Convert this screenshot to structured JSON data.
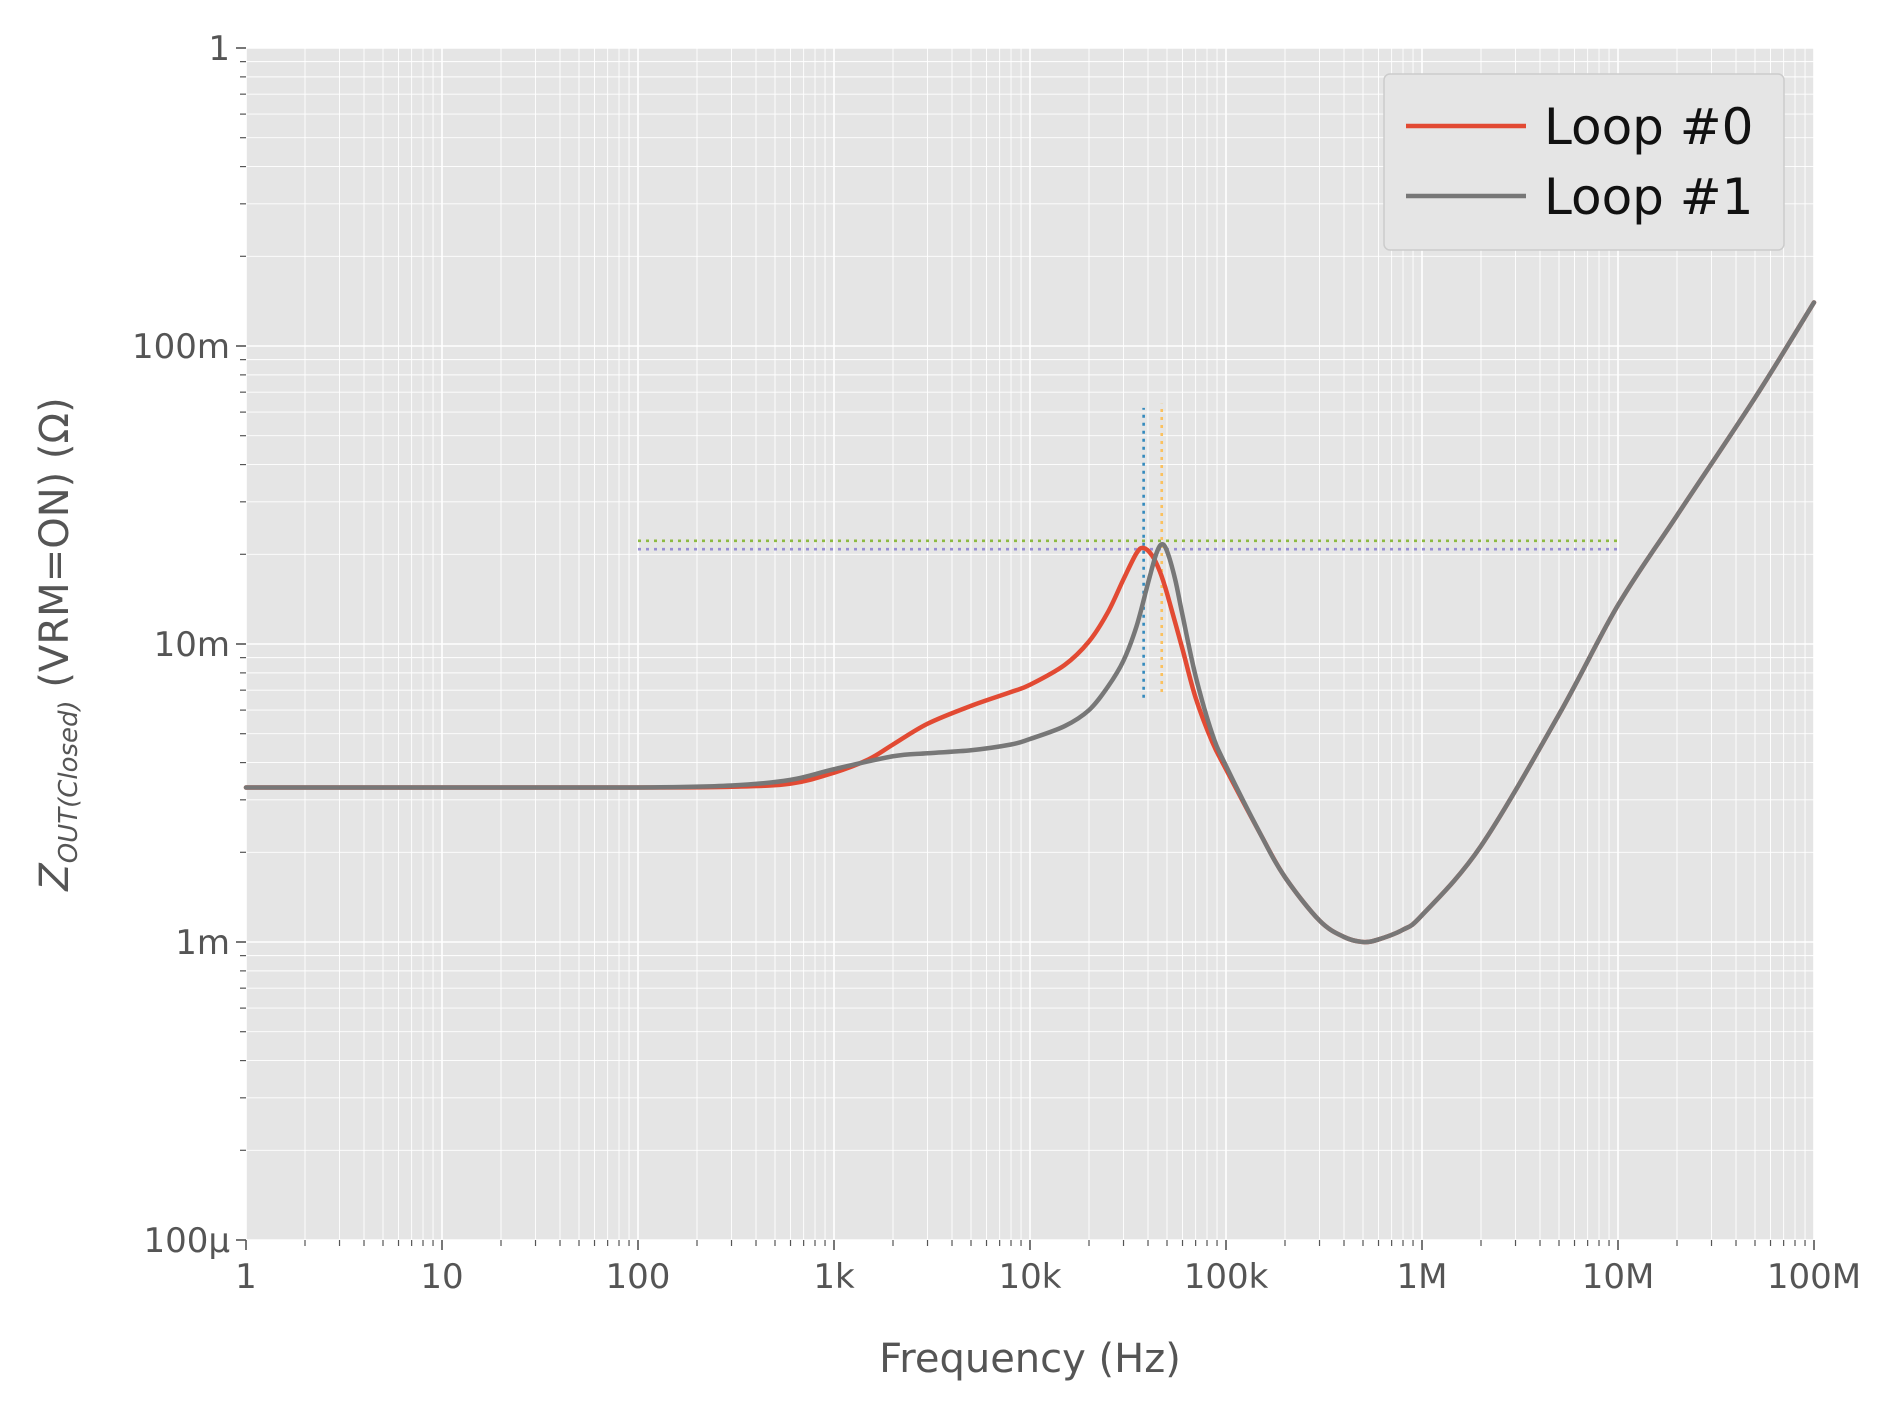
{
  "chart_data": {
    "type": "line",
    "xlabel": "Frequency (Hz)",
    "ylabel": {
      "main": "Z",
      "subscript": "OUT(Closed)",
      "suffix": " (VRM=ON) (Ω)"
    },
    "x_scale": "log",
    "y_scale": "log",
    "xlim": [
      1,
      100000000
    ],
    "ylim": [
      0.0001,
      1
    ],
    "grid": true,
    "legend_position": "top-right",
    "x_ticks": [
      {
        "value": 1,
        "label": "1"
      },
      {
        "value": 10,
        "label": "10"
      },
      {
        "value": 100,
        "label": "100"
      },
      {
        "value": 1000,
        "label": "1k"
      },
      {
        "value": 10000,
        "label": "10k"
      },
      {
        "value": 100000,
        "label": "100k"
      },
      {
        "value": 1000000,
        "label": "1M"
      },
      {
        "value": 10000000,
        "label": "10M"
      },
      {
        "value": 100000000,
        "label": "100M"
      }
    ],
    "y_ticks": [
      {
        "value": 0.0001,
        "label": "100µ"
      },
      {
        "value": 0.001,
        "label": "1m"
      },
      {
        "value": 0.01,
        "label": "10m"
      },
      {
        "value": 0.1,
        "label": "100m"
      },
      {
        "value": 1,
        "label": "1"
      }
    ],
    "series": [
      {
        "name": "Loop #0",
        "color": "#E24A33",
        "points": [
          [
            1,
            0.0033
          ],
          [
            10,
            0.0033
          ],
          [
            100,
            0.0033
          ],
          [
            300,
            0.00332
          ],
          [
            600,
            0.0034
          ],
          [
            1000,
            0.0037
          ],
          [
            1500,
            0.0041
          ],
          [
            2000,
            0.0046
          ],
          [
            3000,
            0.0054
          ],
          [
            5000,
            0.0062
          ],
          [
            8000,
            0.0069
          ],
          [
            10000,
            0.0073
          ],
          [
            15000,
            0.0085
          ],
          [
            20000,
            0.0102
          ],
          [
            25000,
            0.0128
          ],
          [
            30000,
            0.0165
          ],
          [
            35000,
            0.0202
          ],
          [
            38000,
            0.021
          ],
          [
            42000,
            0.0198
          ],
          [
            46000,
            0.0175
          ],
          [
            50000,
            0.0148
          ],
          [
            60000,
            0.0096
          ],
          [
            70000,
            0.0066
          ],
          [
            85000,
            0.0047
          ],
          [
            100000,
            0.0038
          ],
          [
            150000,
            0.0023
          ],
          [
            200000,
            0.00165
          ],
          [
            300000,
            0.00118
          ],
          [
            400000,
            0.00104
          ],
          [
            500000,
            0.001
          ],
          [
            600000,
            0.00102
          ],
          [
            800000,
            0.0011
          ],
          [
            1000000,
            0.00123
          ],
          [
            2000000,
            0.0021
          ],
          [
            5000000,
            0.0058
          ],
          [
            10000000,
            0.0135
          ],
          [
            20000000,
            0.027
          ],
          [
            50000000,
            0.067
          ],
          [
            100000000,
            0.14
          ]
        ]
      },
      {
        "name": "Loop #1",
        "color": "#777777",
        "points": [
          [
            1,
            0.0033
          ],
          [
            10,
            0.0033
          ],
          [
            100,
            0.0033
          ],
          [
            300,
            0.00335
          ],
          [
            600,
            0.0035
          ],
          [
            1000,
            0.0038
          ],
          [
            2000,
            0.0042
          ],
          [
            3000,
            0.0043
          ],
          [
            5000,
            0.0044
          ],
          [
            8000,
            0.0046
          ],
          [
            10000,
            0.0048
          ],
          [
            15000,
            0.0053
          ],
          [
            20000,
            0.006
          ],
          [
            25000,
            0.0072
          ],
          [
            30000,
            0.0088
          ],
          [
            35000,
            0.0115
          ],
          [
            40000,
            0.016
          ],
          [
            44000,
            0.02
          ],
          [
            47000,
            0.0216
          ],
          [
            50000,
            0.0205
          ],
          [
            55000,
            0.0165
          ],
          [
            60000,
            0.0125
          ],
          [
            70000,
            0.0078
          ],
          [
            85000,
            0.005
          ],
          [
            100000,
            0.0039
          ],
          [
            150000,
            0.0023
          ],
          [
            200000,
            0.00165
          ],
          [
            300000,
            0.00118
          ],
          [
            400000,
            0.00104
          ],
          [
            500000,
            0.001
          ],
          [
            600000,
            0.00102
          ],
          [
            800000,
            0.0011
          ],
          [
            1000000,
            0.00123
          ],
          [
            2000000,
            0.0021
          ],
          [
            5000000,
            0.0058
          ],
          [
            10000000,
            0.0135
          ],
          [
            20000000,
            0.027
          ],
          [
            50000000,
            0.067
          ],
          [
            100000000,
            0.14
          ]
        ]
      }
    ],
    "reference_lines": [
      {
        "orientation": "horizontal",
        "y": 0.0222,
        "x_range": [
          100,
          10000000
        ],
        "color": "#8EBA42"
      },
      {
        "orientation": "horizontal",
        "y": 0.0208,
        "x_range": [
          100,
          10000000
        ],
        "color": "#988ED5"
      },
      {
        "orientation": "vertical",
        "x": 38000,
        "y_range": [
          0.0066,
          0.062
        ],
        "color": "#348ABD"
      },
      {
        "orientation": "vertical",
        "x": 47000,
        "y_range": [
          0.0069,
          0.064
        ],
        "color": "#FBC15E"
      }
    ]
  }
}
